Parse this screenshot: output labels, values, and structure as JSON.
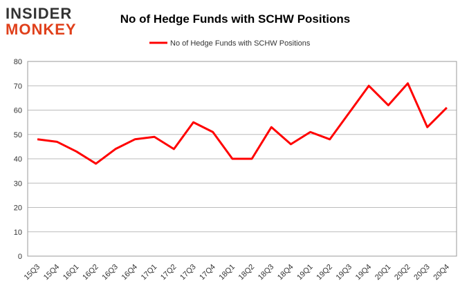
{
  "logo": {
    "line1": "INSIDER",
    "line2": "MONKEY"
  },
  "chart_data": {
    "type": "line",
    "title": "No of Hedge Funds with SCHW Positions",
    "categories": [
      "15Q3",
      "15Q4",
      "16Q1",
      "16Q2",
      "16Q3",
      "16Q4",
      "17Q1",
      "17Q2",
      "17Q3",
      "17Q4",
      "18Q1",
      "18Q2",
      "18Q3",
      "18Q4",
      "19Q1",
      "19Q2",
      "19Q3",
      "19Q4",
      "20Q1",
      "20Q2",
      "20Q3",
      "20Q4"
    ],
    "series": [
      {
        "name": "No of Hedge Funds with SCHW Positions",
        "color": "#ff0000",
        "values": [
          48,
          47,
          43,
          38,
          44,
          48,
          49,
          44,
          55,
          51,
          40,
          40,
          53,
          46,
          51,
          48,
          59,
          70,
          62,
          71,
          53,
          61
        ]
      }
    ],
    "ylim": [
      0,
      80
    ],
    "yticks": [
      0,
      10,
      20,
      30,
      40,
      50,
      60,
      70,
      80
    ],
    "grid": true,
    "legend": "top"
  }
}
